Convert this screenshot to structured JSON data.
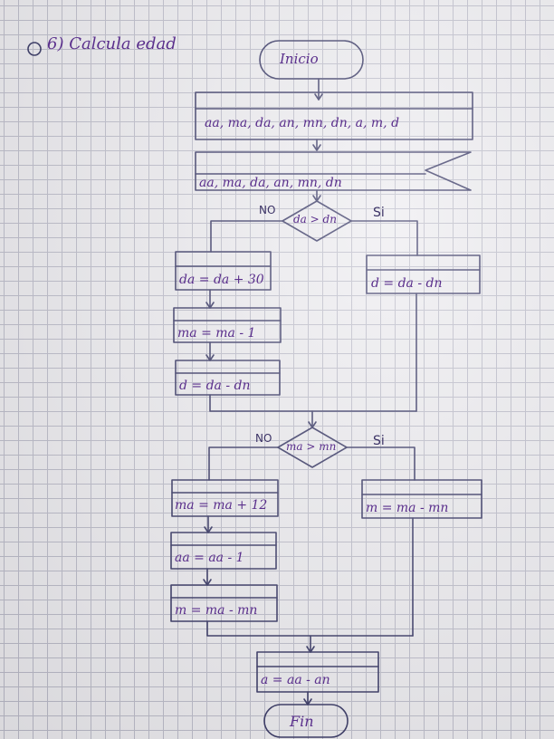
{
  "page": {
    "title": "6) Calcula edad"
  },
  "flowchart": {
    "start": "Inicio",
    "input_box": "aa, ma, da, an, mn, dn, a, m, d",
    "read_box": "aa, ma, da, an, mn, dn",
    "decision1": {
      "condition": "da > dn",
      "no_label": "NO",
      "yes_label": "Si",
      "no_steps": [
        "da = da + 30",
        "ma = ma - 1",
        "d = da - dn"
      ],
      "yes_step": "d = da - dn"
    },
    "decision2": {
      "condition": "ma > mn",
      "no_label": "NO",
      "yes_label": "Si",
      "no_steps": [
        "ma = ma + 12",
        "aa = aa - 1",
        "m = ma - mn"
      ],
      "yes_step": "m = ma - mn"
    },
    "output_box": "a = aa - an",
    "end": "Fin"
  },
  "colors": {
    "ink": "#2a2a5a",
    "handwriting": "#5a2f8c",
    "paper": "#ecebef",
    "grid": "#b9b9c7"
  }
}
